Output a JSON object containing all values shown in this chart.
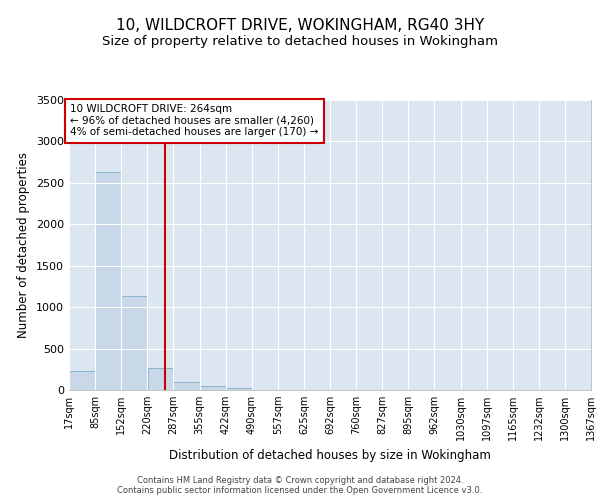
{
  "title": "10, WILDCROFT DRIVE, WOKINGHAM, RG40 3HY",
  "subtitle": "Size of property relative to detached houses in Wokingham",
  "xlabel": "Distribution of detached houses by size in Wokingham",
  "ylabel": "Number of detached properties",
  "footer_line1": "Contains HM Land Registry data © Crown copyright and database right 2024.",
  "footer_line2": "Contains public sector information licensed under the Open Government Licence v3.0.",
  "annotation_line1": "10 WILDCROFT DRIVE: 264sqm",
  "annotation_line2": "← 96% of detached houses are smaller (4,260)",
  "annotation_line3": "4% of semi-detached houses are larger (170) →",
  "bar_edges": [
    17,
    85,
    152,
    220,
    287,
    355,
    422,
    490,
    557,
    625,
    692,
    760,
    827,
    895,
    962,
    1030,
    1097,
    1165,
    1232,
    1300,
    1367
  ],
  "bar_heights": [
    230,
    2630,
    1130,
    270,
    100,
    50,
    20,
    0,
    0,
    0,
    0,
    0,
    0,
    0,
    0,
    0,
    0,
    0,
    0,
    0
  ],
  "bar_color": "#c8d8e8",
  "bar_edge_color": "#7bafc8",
  "vline_color": "#cc0000",
  "vline_x": 264,
  "annotation_box_color": "#cc0000",
  "ylim": [
    0,
    3500
  ],
  "yticks": [
    0,
    500,
    1000,
    1500,
    2000,
    2500,
    3000,
    3500
  ],
  "bg_color": "#dce6f0",
  "grid_color": "#ffffff",
  "title_fontsize": 11,
  "subtitle_fontsize": 9.5,
  "tick_label_fontsize": 7,
  "ylabel_fontsize": 8.5,
  "xlabel_fontsize": 8.5,
  "annotation_fontsize": 7.5,
  "footer_fontsize": 6
}
